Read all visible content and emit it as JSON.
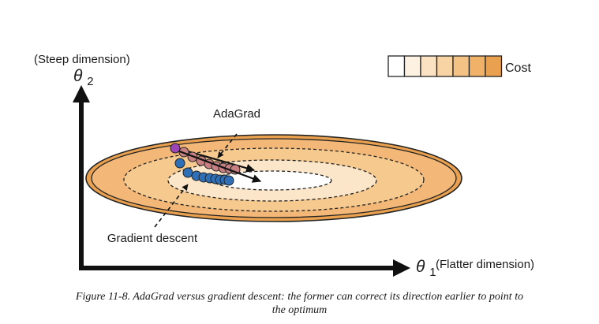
{
  "axis_y": {
    "note": "(Steep dimension)",
    "symbol": "θ",
    "subscript": "2"
  },
  "axis_x": {
    "symbol": "θ",
    "subscript": "1",
    "note": "(Flatter dimension)"
  },
  "cost_legend": {
    "label": "Cost",
    "swatches": [
      "#ffffff",
      "#fdf1e2",
      "#fbe2c2",
      "#f8d3a3",
      "#f5c285",
      "#f0b168",
      "#e9a04f"
    ]
  },
  "paths": [
    {
      "name": "AdaGrad",
      "color": "#c98083",
      "points": 8
    },
    {
      "name": "Gradient descent",
      "color": "#2f6fb7",
      "points": 9
    }
  ],
  "start_color": "#9b46b4",
  "contours": {
    "outer": "#e9a04f",
    "middle": "#f6c98f",
    "inner": "#fbe6c9",
    "center": "#ffffff"
  },
  "caption": {
    "line1": "Figure 11-8. AdaGrad versus gradient descent: the former can correct its direction earlier to point to",
    "line2": "the optimum"
  }
}
